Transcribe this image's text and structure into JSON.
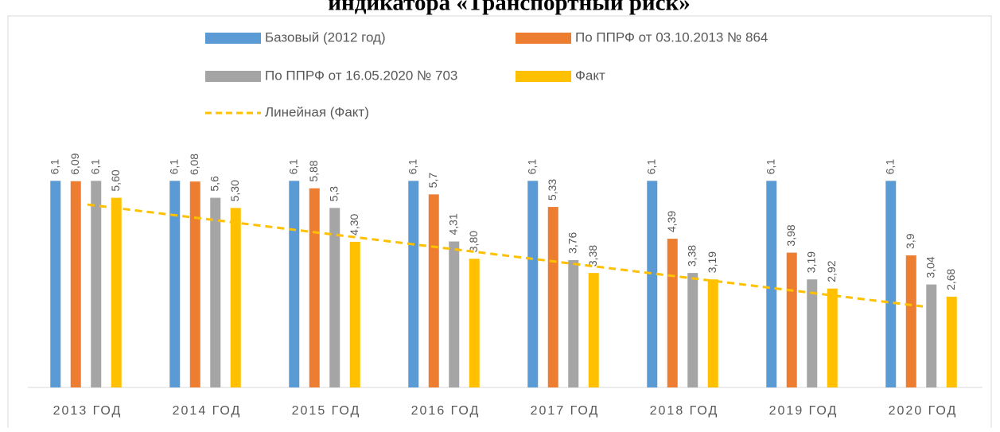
{
  "chart_data": {
    "type": "bar",
    "title": "индикатора «Транспортный риск»",
    "categories": [
      "2013 ГОД",
      "2014 ГОД",
      "2015 ГОД",
      "2016 ГОД",
      "2017 ГОД",
      "2018 ГОД",
      "2019 ГОД",
      "2020 ГОД"
    ],
    "series": [
      {
        "name": "Базовый (2012 год)",
        "color": "#5b9bd5",
        "values": [
          6.1,
          6.1,
          6.1,
          6.1,
          6.1,
          6.1,
          6.1,
          6.1
        ],
        "value_labels": [
          "6,1",
          "6,1",
          "6,1",
          "6,1",
          "6,1",
          "6,1",
          "6,1",
          "6,1"
        ]
      },
      {
        "name": "По ППРФ от 03.10.2013 № 864",
        "color": "#ed7d31",
        "values": [
          6.09,
          6.08,
          5.88,
          5.7,
          5.33,
          4.39,
          3.98,
          3.9
        ],
        "value_labels": [
          "6,09",
          "6,08",
          "5,88",
          "5,7",
          "5,33",
          "4,39",
          "3,98",
          "3,9"
        ]
      },
      {
        "name": "По ППРФ от 16.05.2020 № 703",
        "color": "#a5a5a5",
        "values": [
          6.1,
          5.6,
          5.3,
          4.31,
          3.76,
          3.38,
          3.19,
          3.04
        ],
        "value_labels": [
          "6,1",
          "5,6",
          "5,3",
          "4,31",
          "3,76",
          "3,38",
          "3,19",
          "3,04"
        ]
      },
      {
        "name": "Факт",
        "color": "#ffc000",
        "values": [
          5.6,
          5.3,
          4.3,
          3.8,
          3.38,
          3.19,
          2.92,
          2.68
        ],
        "value_labels": [
          "5,60",
          "5,30",
          "4,30",
          "3,80",
          "3,38",
          "3,19",
          "2,92",
          "2,68"
        ]
      }
    ],
    "trendline": {
      "name": "Линейная (Факт)",
      "series": 3,
      "color": "#ffc000"
    },
    "ylim": [
      0,
      7
    ]
  }
}
